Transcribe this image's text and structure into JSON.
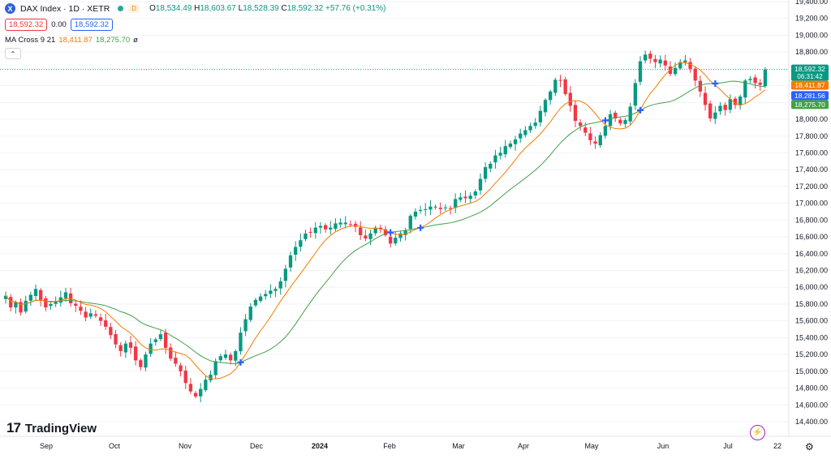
{
  "header": {
    "logo_letter": "X",
    "symbol_title": "DAX Index · 1D · XETR",
    "market_badge": "D",
    "ohlc": {
      "o_label": "O",
      "o": "18,534.49",
      "h_label": "H",
      "h": "18,603.67",
      "l_label": "L",
      "l": "18,528.39",
      "c_label": "C",
      "c": "18,592.32",
      "change": "+57.76 (+0.31%)"
    }
  },
  "trade": {
    "sell": "18,592.32",
    "spread": "0.00",
    "buy": "18,592.32"
  },
  "indicator": {
    "name": "MA Cross 9 21",
    "fast": "18,411.87",
    "slow": "18,275.70",
    "visibility_icon": "ø"
  },
  "collapse_icon": "⌃",
  "branding": {
    "logo_mark": "17",
    "name": "TradingView"
  },
  "icons": {
    "bolt": "⚡",
    "settings": "⚙"
  },
  "colors": {
    "up": "#089981",
    "down": "#f23645",
    "ma_fast": "#f57c00",
    "ma_slow": "#43a047",
    "cross": "#2962ff",
    "current_price_bg": "#089981",
    "fast_label_bg": "#f57c00",
    "mid_label_bg": "#2962ff",
    "slow_label_bg": "#43a047"
  },
  "price_axis": {
    "ticks": [
      "19,400.00",
      "19,200.00",
      "19,000.00",
      "18,800.00",
      "18,600.00",
      "18,400.00",
      "18,200.00",
      "18,000.00",
      "17,800.00",
      "17,600.00",
      "17,400.00",
      "17,200.00",
      "17,000.00",
      "16,800.00",
      "16,600.00",
      "16,400.00",
      "16,200.00",
      "16,000.00",
      "15,800.00",
      "15,600.00",
      "15,400.00",
      "15,200.00",
      "15,000.00",
      "14,800.00",
      "14,600.00",
      "14,400.00"
    ],
    "labels": [
      {
        "text": "18,592.32",
        "sub": "06:31:42",
        "value": 18592.32,
        "color": "#089981"
      },
      {
        "text": "18,411.87",
        "value": 18411.87,
        "color": "#f57c00"
      },
      {
        "text": "18,281.56",
        "value": 18281.56,
        "color": "#2962ff"
      },
      {
        "text": "18,275.70",
        "value": 18275.7,
        "color": "#43a047"
      }
    ]
  },
  "time_axis": [
    "Sep",
    "Oct",
    "Nov",
    "Dec",
    "2024",
    "Feb",
    "Mar",
    "Apr",
    "May",
    "Jun",
    "Jul",
    "22"
  ],
  "chart_data": {
    "type": "candlestick",
    "symbol": "DAX Index",
    "interval": "1D",
    "exchange": "XETR",
    "ylim": [
      14400,
      19400
    ],
    "x_labels": [
      "Sep",
      "Oct",
      "Nov",
      "Dec",
      "2024",
      "Feb",
      "Mar",
      "Apr",
      "May",
      "Jun",
      "Jul",
      "22"
    ],
    "closes": [
      15900,
      15760,
      15820,
      15700,
      15840,
      15910,
      15980,
      15850,
      15760,
      15800,
      15830,
      15880,
      15940,
      15810,
      15780,
      15720,
      15640,
      15690,
      15660,
      15600,
      15530,
      15430,
      15320,
      15240,
      15330,
      15280,
      15130,
      15050,
      15200,
      15330,
      15380,
      15440,
      15280,
      15150,
      15090,
      15000,
      14860,
      14760,
      14700,
      14790,
      14900,
      14960,
      15120,
      15180,
      15200,
      15130,
      15240,
      15460,
      15620,
      15770,
      15850,
      15890,
      15920,
      15960,
      15980,
      16070,
      16220,
      16380,
      16480,
      16560,
      16640,
      16650,
      16710,
      16730,
      16690,
      16710,
      16760,
      16770,
      16770,
      16750,
      16720,
      16620,
      16580,
      16640,
      16710,
      16690,
      16620,
      16520,
      16590,
      16640,
      16680,
      16850,
      16900,
      16920,
      16930,
      16960,
      16960,
      16930,
      16950,
      16940,
      17050,
      17070,
      17060,
      17090,
      17140,
      17290,
      17430,
      17470,
      17570,
      17600,
      17680,
      17710,
      17760,
      17830,
      17870,
      17920,
      17960,
      18100,
      18230,
      18330,
      18470,
      18460,
      18300,
      18160,
      17980,
      17920,
      17840,
      17750,
      17710,
      17810,
      17920,
      18060,
      18010,
      17950,
      17990,
      18150,
      18430,
      18690,
      18770,
      18720,
      18680,
      18710,
      18640,
      18540,
      18610,
      18680,
      18700,
      18600,
      18460,
      18330,
      18170,
      18010,
      18080,
      18160,
      18110,
      18240,
      18170,
      18270,
      18460,
      18480,
      18430,
      18410,
      18592
    ],
    "series": [
      {
        "name": "MA Cross 9 21",
        "values": [
          18411.87,
          18275.7
        ]
      }
    ],
    "last_price": 18592.32,
    "change": "+57.76 (+0.31%)"
  }
}
